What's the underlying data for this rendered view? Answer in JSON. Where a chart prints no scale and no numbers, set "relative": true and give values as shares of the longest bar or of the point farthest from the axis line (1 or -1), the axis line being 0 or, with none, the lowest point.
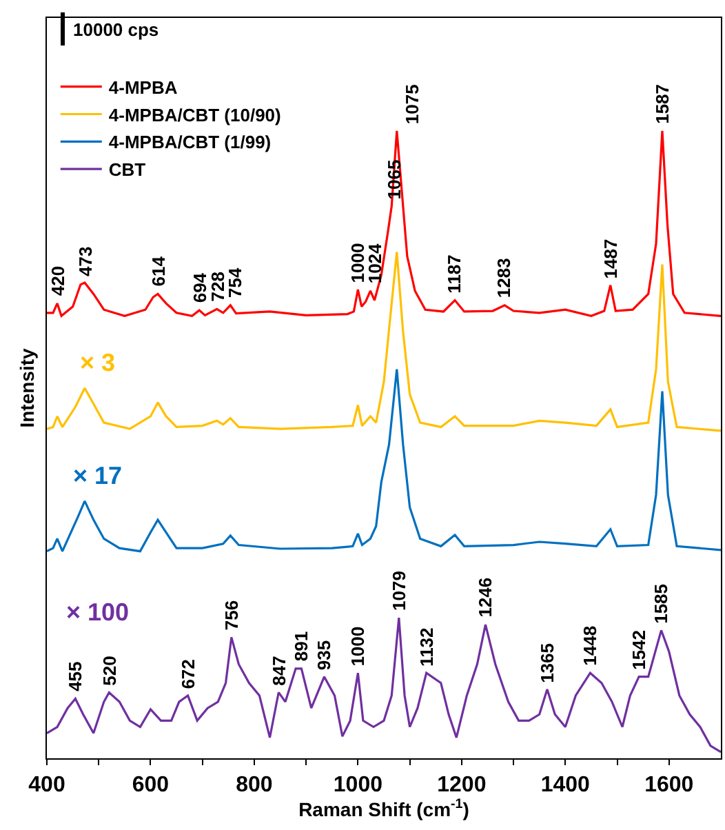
{
  "chart_data": {
    "type": "line",
    "relative": true,
    "xlabel": "Raman Shift (cm$^{-1}$)",
    "ylabel": "Intensity",
    "xlim": [
      400,
      1700
    ],
    "xticks": [
      400,
      {
        "value": 500,
        "label": null
      },
      600,
      {
        "value": 700,
        "label": null
      },
      800,
      {
        "value": 900,
        "label": null
      },
      1000,
      {
        "value": 1100,
        "label": null
      },
      1200,
      {
        "value": 1300,
        "label": null
      },
      1400,
      {
        "value": 1500,
        "label": null
      },
      1600
    ],
    "tick_labels": "x",
    "grid": false,
    "legend": "top left",
    "marker": "none",
    "line_style": "solid",
    "series": [
      {
        "name": "4-MPBA",
        "color": "#ff0000",
        "x": [
          400,
          412,
          420,
          428,
          450,
          465,
          473,
          490,
          510,
          550,
          590,
          605,
          614,
          630,
          650,
          680,
          694,
          705,
          728,
          740,
          754,
          765,
          830,
          900,
          980,
          992,
          1000,
          1007,
          1015,
          1024,
          1032,
          1045,
          1058,
          1065,
          1075,
          1085,
          1095,
          1110,
          1130,
          1165,
          1187,
          1205,
          1260,
          1283,
          1300,
          1350,
          1400,
          1450,
          1475,
          1487,
          1497,
          1530,
          1560,
          1575,
          1587,
          1597,
          1608,
          1630,
          1700
        ],
        "values": [
          0.71,
          0.71,
          0.725,
          0.705,
          0.72,
          0.755,
          0.758,
          0.74,
          0.715,
          0.705,
          0.715,
          0.735,
          0.74,
          0.725,
          0.71,
          0.705,
          0.714,
          0.706,
          0.716,
          0.71,
          0.722,
          0.709,
          0.712,
          0.706,
          0.708,
          0.712,
          0.747,
          0.72,
          0.728,
          0.745,
          0.73,
          0.77,
          0.84,
          0.88,
          1.0,
          0.9,
          0.8,
          0.745,
          0.715,
          0.712,
          0.73,
          0.712,
          0.713,
          0.722,
          0.713,
          0.71,
          0.715,
          0.705,
          0.713,
          0.754,
          0.713,
          0.715,
          0.74,
          0.82,
          1.0,
          0.85,
          0.74,
          0.71,
          0.705
        ]
      },
      {
        "name": "4-MPBA/CBT (10/90)",
        "color": "#ffc000",
        "x": [
          400,
          412,
          420,
          430,
          455,
          473,
          490,
          510,
          560,
          600,
          614,
          630,
          650,
          700,
          728,
          740,
          754,
          770,
          850,
          950,
          990,
          1000,
          1008,
          1024,
          1035,
          1050,
          1062,
          1075,
          1087,
          1100,
          1120,
          1160,
          1187,
          1205,
          1300,
          1350,
          1400,
          1460,
          1487,
          1500,
          1560,
          1575,
          1587,
          1598,
          1615,
          1700
        ],
        "values": [
          0.525,
          0.528,
          0.545,
          0.528,
          0.56,
          0.59,
          0.565,
          0.535,
          0.525,
          0.545,
          0.567,
          0.545,
          0.528,
          0.53,
          0.538,
          0.532,
          0.542,
          0.528,
          0.525,
          0.528,
          0.53,
          0.563,
          0.53,
          0.545,
          0.535,
          0.6,
          0.7,
          0.807,
          0.68,
          0.58,
          0.535,
          0.528,
          0.545,
          0.53,
          0.53,
          0.538,
          0.535,
          0.53,
          0.556,
          0.528,
          0.535,
          0.62,
          0.787,
          0.6,
          0.528,
          0.522
        ]
      },
      {
        "name": "4-MPBA/CBT (1/99)",
        "color": "#0070c0",
        "x": [
          400,
          412,
          420,
          430,
          460,
          473,
          490,
          510,
          540,
          580,
          600,
          614,
          630,
          650,
          700,
          740,
          754,
          770,
          850,
          950,
          990,
          1000,
          1008,
          1024,
          1035,
          1045,
          1060,
          1075,
          1087,
          1100,
          1120,
          1160,
          1187,
          1205,
          1300,
          1350,
          1400,
          1460,
          1487,
          1500,
          1560,
          1575,
          1587,
          1598,
          1615,
          1700
        ],
        "values": [
          0.33,
          0.335,
          0.35,
          0.33,
          0.385,
          0.41,
          0.38,
          0.35,
          0.335,
          0.33,
          0.36,
          0.38,
          0.36,
          0.335,
          0.335,
          0.342,
          0.355,
          0.34,
          0.334,
          0.335,
          0.338,
          0.358,
          0.34,
          0.35,
          0.37,
          0.44,
          0.5,
          0.62,
          0.5,
          0.4,
          0.35,
          0.338,
          0.356,
          0.338,
          0.34,
          0.345,
          0.342,
          0.338,
          0.365,
          0.338,
          0.34,
          0.42,
          0.585,
          0.42,
          0.338,
          0.332
        ]
      },
      {
        "name": "CBT",
        "color": "#7030a0",
        "x": [
          400,
          420,
          440,
          455,
          470,
          490,
          510,
          520,
          540,
          560,
          580,
          600,
          620,
          640,
          655,
          672,
          690,
          710,
          730,
          745,
          756,
          770,
          790,
          810,
          830,
          847,
          860,
          880,
          891,
          910,
          935,
          955,
          970,
          985,
          1000,
          1010,
          1030,
          1050,
          1065,
          1079,
          1090,
          1100,
          1115,
          1132,
          1160,
          1175,
          1190,
          1210,
          1230,
          1246,
          1265,
          1290,
          1310,
          1330,
          1350,
          1365,
          1380,
          1400,
          1420,
          1448,
          1470,
          1490,
          1510,
          1525,
          1542,
          1560,
          1585,
          1600,
          1620,
          1640,
          1660,
          1680,
          1700
        ],
        "values": [
          0.04,
          0.05,
          0.08,
          0.095,
          0.07,
          0.04,
          0.09,
          0.105,
          0.09,
          0.06,
          0.05,
          0.078,
          0.06,
          0.06,
          0.09,
          0.1,
          0.06,
          0.08,
          0.09,
          0.12,
          0.193,
          0.15,
          0.12,
          0.1,
          0.033,
          0.105,
          0.09,
          0.143,
          0.143,
          0.08,
          0.13,
          0.1,
          0.035,
          0.06,
          0.136,
          0.06,
          0.05,
          0.06,
          0.1,
          0.224,
          0.1,
          0.05,
          0.08,
          0.136,
          0.12,
          0.07,
          0.033,
          0.1,
          0.15,
          0.213,
          0.15,
          0.09,
          0.06,
          0.06,
          0.07,
          0.11,
          0.07,
          0.05,
          0.1,
          0.136,
          0.12,
          0.09,
          0.05,
          0.1,
          0.13,
          0.13,
          0.204,
          0.17,
          0.1,
          0.07,
          0.05,
          0.02,
          0.01
        ]
      }
    ],
    "annotations": [
      "10000 cps",
      "× 3",
      "× 17",
      "× 100",
      {
        "text": "420",
        "x": 420,
        "y": 0.725
      },
      {
        "text": "473",
        "x": 473,
        "y": 0.758
      },
      {
        "text": "614",
        "x": 614,
        "y": 0.74
      },
      {
        "text": "694",
        "x": 694,
        "y": 0.714
      },
      {
        "text": "728",
        "x": 728,
        "y": 0.716
      },
      {
        "text": "754",
        "x": 754,
        "y": 0.722
      },
      {
        "text": "1000",
        "x": 1000,
        "y": 0.747
      },
      {
        "text": "1024",
        "x": 1024,
        "y": 0.745
      },
      {
        "text": "1065",
        "x": 1065,
        "y": 0.88
      },
      {
        "text": "1075",
        "x": 1075,
        "y": 1.0
      },
      {
        "text": "1187",
        "x": 1187,
        "y": 0.73
      },
      {
        "text": "1283",
        "x": 1283,
        "y": 0.722
      },
      {
        "text": "1487",
        "x": 1487,
        "y": 0.754
      },
      {
        "text": "1587",
        "x": 1587,
        "y": 1.0
      },
      {
        "text": "455",
        "x": 455,
        "y": 0.095
      },
      {
        "text": "520",
        "x": 520,
        "y": 0.105
      },
      {
        "text": "672",
        "x": 672,
        "y": 0.1
      },
      {
        "text": "756",
        "x": 756,
        "y": 0.193
      },
      {
        "text": "847",
        "x": 847,
        "y": 0.105
      },
      {
        "text": "891",
        "x": 891,
        "y": 0.143
      },
      {
        "text": "935",
        "x": 935,
        "y": 0.13
      },
      {
        "text": "1000",
        "x": 1000,
        "y": 0.136
      },
      {
        "text": "1079",
        "x": 1079,
        "y": 0.224
      },
      {
        "text": "1132",
        "x": 1132,
        "y": 0.136
      },
      {
        "text": "1246",
        "x": 1246,
        "y": 0.213
      },
      {
        "text": "1365",
        "x": 1365,
        "y": 0.11
      },
      {
        "text": "1448",
        "x": 1448,
        "y": 0.136
      },
      {
        "text": "1542",
        "x": 1542,
        "y": 0.13
      },
      {
        "text": "1585",
        "x": 1585,
        "y": 0.204
      }
    ]
  }
}
